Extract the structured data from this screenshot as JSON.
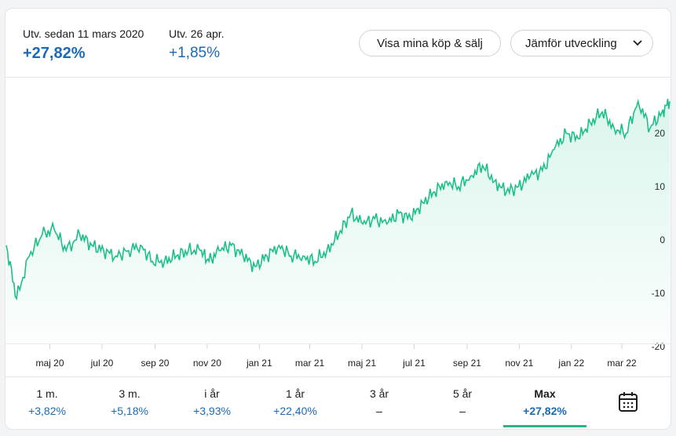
{
  "header": {
    "since": {
      "label": "Utv. sedan 11 mars 2020",
      "value": "+27,82%"
    },
    "day": {
      "label": "Utv. 26 apr.",
      "value": "+1,85%"
    }
  },
  "buttons": {
    "show_trades": "Visa mina köp & sälj",
    "compare": "Jämför utveckling"
  },
  "chart_data": {
    "type": "area",
    "ylim": [
      -20,
      30
    ],
    "y_ticks": [
      "20",
      "10",
      "0",
      "-10",
      "-20"
    ],
    "x_ticks": [
      "maj 20",
      "jul 20",
      "sep 20",
      "nov 20",
      "jan 21",
      "mar 21",
      "maj 21",
      "jul 21",
      "sep 21",
      "nov 21",
      "jan 22",
      "mar 22"
    ],
    "series": [
      {
        "line_color": "#1dbf88",
        "x": [
          "2020-03-11",
          "2020-03-23",
          "2020-04-07",
          "2020-04-22",
          "2020-05-06",
          "2020-05-20",
          "2020-06-05",
          "2020-06-19",
          "2020-07-03",
          "2020-07-17",
          "2020-08-01",
          "2020-08-15",
          "2020-08-29",
          "2020-09-12",
          "2020-09-26",
          "2020-10-10",
          "2020-10-24",
          "2020-11-03",
          "2020-11-15",
          "2020-11-29",
          "2020-12-13",
          "2020-12-27",
          "2021-01-10",
          "2021-01-24",
          "2021-02-07",
          "2021-02-21",
          "2021-03-07",
          "2021-03-21",
          "2021-04-04",
          "2021-04-18",
          "2021-05-02",
          "2021-05-16",
          "2021-05-30",
          "2021-06-13",
          "2021-06-27",
          "2021-07-11",
          "2021-07-25",
          "2021-08-08",
          "2021-08-22",
          "2021-09-05",
          "2021-09-19",
          "2021-10-03",
          "2021-10-17",
          "2021-10-31",
          "2021-11-14",
          "2021-11-28",
          "2021-12-12",
          "2021-12-26",
          "2022-01-09",
          "2022-01-23",
          "2022-02-06",
          "2022-02-20",
          "2022-03-06",
          "2022-03-20",
          "2022-04-03",
          "2022-04-17",
          "2022-04-26"
        ],
        "values": [
          -1,
          -11,
          -3,
          1,
          2,
          -2,
          1,
          -1,
          -2,
          -3,
          -2,
          -1,
          -4,
          -4,
          -3,
          -2,
          -2,
          -4,
          -2,
          -1,
          -3,
          -5,
          -3,
          -1,
          -3,
          -3,
          -4,
          -2,
          1,
          5,
          3,
          4,
          3,
          5,
          4,
          7,
          9,
          11,
          10,
          12,
          14,
          11,
          9,
          10,
          12,
          13,
          17,
          20,
          19,
          22,
          24,
          21,
          20,
          26,
          21,
          24,
          26
        ]
      }
    ]
  },
  "periods": [
    {
      "label": "1 m.",
      "value": "+3,82%"
    },
    {
      "label": "3 m.",
      "value": "+5,18%"
    },
    {
      "label": "i år",
      "value": "+3,93%"
    },
    {
      "label": "1 år",
      "value": "+22,40%"
    },
    {
      "label": "3 år",
      "value": "–"
    },
    {
      "label": "5 år",
      "value": "–"
    },
    {
      "label": "Max",
      "value": "+27,82%"
    }
  ],
  "active_period": "Max",
  "icons": {
    "dropdown": "chevron-down-icon",
    "calendar": "calendar-icon"
  }
}
